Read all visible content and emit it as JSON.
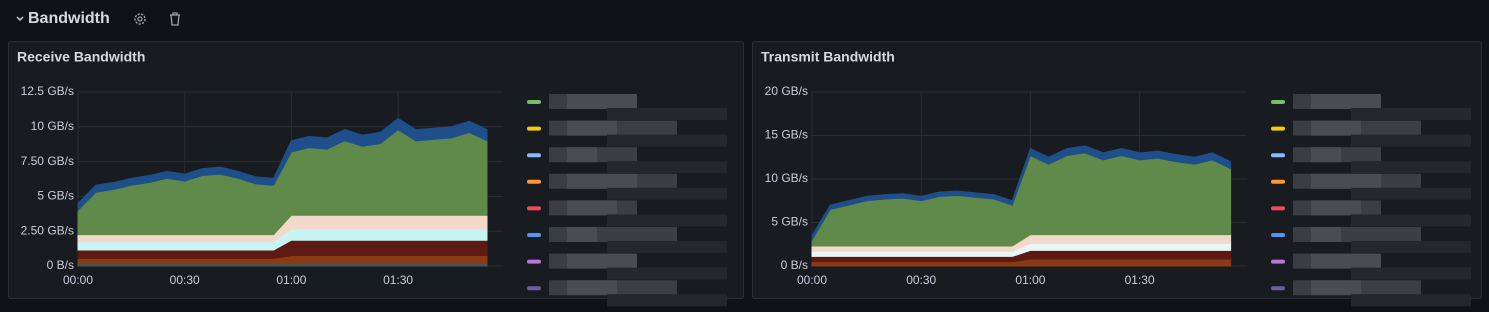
{
  "header": {
    "title": "Bandwidth"
  },
  "chart_data": [
    {
      "type": "area",
      "stacked": true,
      "title": "Receive Bandwidth",
      "x": [
        0,
        5,
        10,
        15,
        20,
        25,
        30,
        35,
        40,
        45,
        50,
        55,
        60,
        65,
        70,
        75,
        80,
        85,
        90,
        95,
        100,
        105,
        110,
        115
      ],
      "xlim": [
        0,
        119.5
      ],
      "xticks": [
        {
          "value": 0,
          "label": "00:00"
        },
        {
          "value": 30,
          "label": "00:30"
        },
        {
          "value": 60,
          "label": "01:00"
        },
        {
          "value": 90,
          "label": "01:30"
        }
      ],
      "ylim": [
        0,
        12.5
      ],
      "yticks": [
        {
          "value": 0,
          "label": "0 B/s"
        },
        {
          "value": 2.5,
          "label": "2.50 GB/s"
        },
        {
          "value": 5,
          "label": "5 GB/s"
        },
        {
          "value": 7.5,
          "label": "7.50 GB/s"
        },
        {
          "value": 10,
          "label": "10 GB/s"
        },
        {
          "value": 12.5,
          "label": "12.5 GB/s"
        }
      ],
      "grid": true,
      "series": [
        {
          "color": "#2f5f6b",
          "values": [
            0.15,
            0.15,
            0.15,
            0.15,
            0.15,
            0.15,
            0.15,
            0.15,
            0.15,
            0.15,
            0.15,
            0.15,
            0.15,
            0.15,
            0.15,
            0.15,
            0.15,
            0.15,
            0.15,
            0.15,
            0.15,
            0.15,
            0.15,
            0.15
          ]
        },
        {
          "color": "#8a3a14",
          "values": [
            0.4,
            0.4,
            0.4,
            0.4,
            0.4,
            0.4,
            0.4,
            0.4,
            0.4,
            0.4,
            0.4,
            0.4,
            0.6,
            0.6,
            0.6,
            0.6,
            0.6,
            0.6,
            0.6,
            0.6,
            0.6,
            0.6,
            0.6,
            0.6
          ]
        },
        {
          "color": "#5c1a12",
          "values": [
            0.6,
            0.6,
            0.6,
            0.6,
            0.6,
            0.6,
            0.6,
            0.6,
            0.6,
            0.6,
            0.6,
            0.6,
            1.1,
            1.1,
            1.1,
            1.1,
            1.1,
            1.1,
            1.1,
            1.1,
            1.1,
            1.1,
            1.1,
            1.1
          ]
        },
        {
          "color": "#c8f4f6",
          "values": [
            0.6,
            0.6,
            0.6,
            0.6,
            0.6,
            0.6,
            0.6,
            0.6,
            0.6,
            0.6,
            0.6,
            0.6,
            0.8,
            0.8,
            0.8,
            0.8,
            0.8,
            0.8,
            0.8,
            0.8,
            0.8,
            0.8,
            0.8,
            0.8
          ]
        },
        {
          "color": "#f3d9c9",
          "values": [
            0.5,
            0.5,
            0.5,
            0.5,
            0.5,
            0.5,
            0.5,
            0.5,
            0.5,
            0.5,
            0.5,
            0.5,
            1.0,
            1.0,
            1.0,
            1.0,
            1.0,
            1.0,
            1.0,
            1.0,
            1.0,
            1.0,
            1.0,
            1.0
          ]
        },
        {
          "color": "#5f8a4a",
          "values": [
            1.75,
            3.05,
            3.25,
            3.55,
            3.75,
            4.05,
            3.85,
            4.25,
            4.35,
            4.05,
            3.65,
            3.55,
            4.55,
            4.85,
            4.75,
            5.35,
            4.95,
            5.15,
            6.15,
            5.35,
            5.45,
            5.55,
            5.95,
            5.35
          ]
        },
        {
          "color": "#1f4f8a",
          "values": [
            0.5,
            0.5,
            0.5,
            0.5,
            0.5,
            0.5,
            0.5,
            0.5,
            0.5,
            0.5,
            0.5,
            0.5,
            0.8,
            0.8,
            0.8,
            0.8,
            0.8,
            0.8,
            0.8,
            0.8,
            0.8,
            0.8,
            0.8,
            0.8
          ]
        }
      ]
    },
    {
      "type": "area",
      "stacked": true,
      "title": "Transmit Bandwidth",
      "x": [
        0,
        5,
        10,
        15,
        20,
        25,
        30,
        35,
        40,
        45,
        50,
        55,
        60,
        65,
        70,
        75,
        80,
        85,
        90,
        95,
        100,
        105,
        110,
        115
      ],
      "xlim": [
        0,
        119.5
      ],
      "xticks": [
        {
          "value": 0,
          "label": "00:00"
        },
        {
          "value": 30,
          "label": "00:30"
        },
        {
          "value": 60,
          "label": "01:00"
        },
        {
          "value": 90,
          "label": "01:30"
        }
      ],
      "ylim": [
        0,
        20
      ],
      "yticks": [
        {
          "value": 0,
          "label": "0 B/s"
        },
        {
          "value": 5,
          "label": "5 GB/s"
        },
        {
          "value": 10,
          "label": "10 GB/s"
        },
        {
          "value": 15,
          "label": "15 GB/s"
        },
        {
          "value": 20,
          "label": "20 GB/s"
        }
      ],
      "grid": true,
      "series": [
        {
          "color": "#8a3a14",
          "values": [
            0.5,
            0.5,
            0.5,
            0.5,
            0.5,
            0.5,
            0.5,
            0.5,
            0.5,
            0.5,
            0.5,
            0.5,
            0.8,
            0.8,
            0.8,
            0.8,
            0.8,
            0.8,
            0.8,
            0.8,
            0.8,
            0.8,
            0.8,
            0.8
          ]
        },
        {
          "color": "#5c1a12",
          "values": [
            0.6,
            0.6,
            0.6,
            0.6,
            0.6,
            0.6,
            0.6,
            0.6,
            0.6,
            0.6,
            0.6,
            0.6,
            1.0,
            1.0,
            1.0,
            1.0,
            1.0,
            1.0,
            1.0,
            1.0,
            1.0,
            1.0,
            1.0,
            1.0
          ]
        },
        {
          "color": "#e8f6f7",
          "values": [
            0.6,
            0.6,
            0.6,
            0.6,
            0.6,
            0.6,
            0.6,
            0.6,
            0.6,
            0.6,
            0.6,
            0.6,
            0.8,
            0.8,
            0.8,
            0.8,
            0.8,
            0.8,
            0.8,
            0.8,
            0.8,
            0.8,
            0.8,
            0.8
          ]
        },
        {
          "color": "#f3d9c9",
          "values": [
            0.6,
            0.6,
            0.6,
            0.6,
            0.6,
            0.6,
            0.6,
            0.6,
            0.6,
            0.6,
            0.6,
            0.6,
            1.0,
            1.0,
            1.0,
            1.0,
            1.0,
            1.0,
            1.0,
            1.0,
            1.0,
            1.0,
            1.0,
            1.0
          ]
        },
        {
          "color": "#5f8a4a",
          "values": [
            0.7,
            4.2,
            4.7,
            5.2,
            5.4,
            5.5,
            5.2,
            5.7,
            5.8,
            5.6,
            5.4,
            4.7,
            9.1,
            8.1,
            9.1,
            9.4,
            8.6,
            9.1,
            8.6,
            8.8,
            8.4,
            8.1,
            8.6,
            7.6
          ]
        },
        {
          "color": "#1f4f8a",
          "values": [
            0.5,
            0.5,
            0.5,
            0.5,
            0.5,
            0.5,
            0.5,
            0.5,
            0.5,
            0.5,
            0.5,
            0.5,
            0.8,
            0.8,
            0.8,
            0.8,
            0.8,
            0.8,
            0.8,
            0.8,
            0.8,
            0.8,
            0.8,
            0.8
          ]
        }
      ]
    }
  ]
}
